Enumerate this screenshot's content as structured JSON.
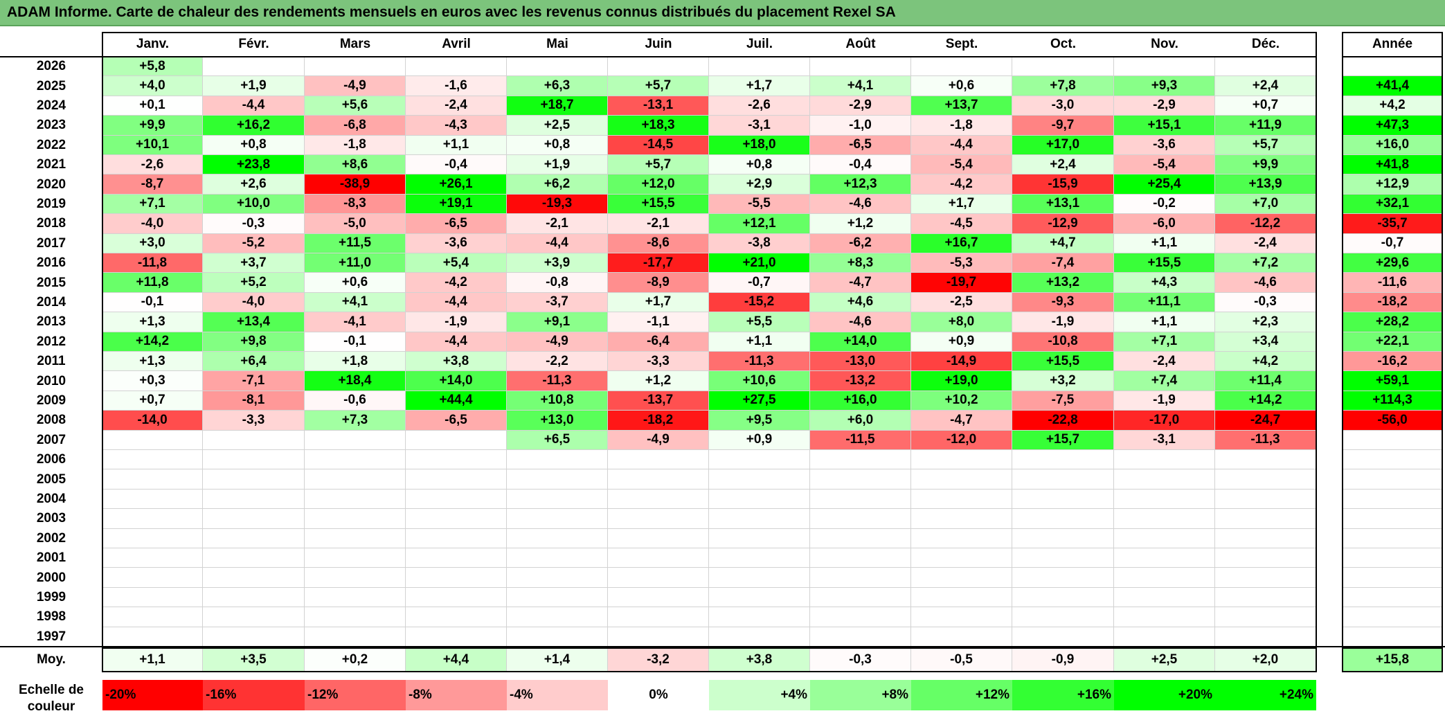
{
  "title": "ADAM Informe. Carte de chaleur des rendements mensuels en euros avec les revenus connus distribués du placement Rexel SA",
  "months": [
    "Janv.",
    "Févr.",
    "Mars",
    "Avril",
    "Mai",
    "Juin",
    "Juil.",
    "Août",
    "Sept.",
    "Oct.",
    "Nov.",
    "Déc."
  ],
  "annual_header": "Année",
  "avg_label": "Moy.",
  "scale_label": "Echelle de couleur",
  "colors": {
    "negative_max": "#ff0000",
    "neutral": "#ffffff",
    "positive_max": "#00ff00",
    "title_bar": "#7cc47c"
  },
  "chart_data": {
    "type": "heatmap",
    "title": "ADAM Informe. Carte de chaleur des rendements mensuels en euros avec les revenus connus distribués du placement Rexel SA",
    "x_categories": [
      "Janv.",
      "Févr.",
      "Mars",
      "Avril",
      "Mai",
      "Juin",
      "Juil.",
      "Août",
      "Sept.",
      "Oct.",
      "Nov.",
      "Déc."
    ],
    "years": [
      "2026",
      "2025",
      "2024",
      "2023",
      "2022",
      "2021",
      "2020",
      "2019",
      "2018",
      "2017",
      "2016",
      "2015",
      "2014",
      "2013",
      "2012",
      "2011",
      "2010",
      "2009",
      "2008",
      "2007",
      "2006",
      "2005",
      "2004",
      "2003",
      "2002",
      "2001",
      "2000",
      "1999",
      "1998",
      "1997"
    ],
    "monthly": [
      [
        "+5,8",
        "",
        "",
        "",
        "",
        "",
        "",
        "",
        "",
        "",
        "",
        ""
      ],
      [
        "+4,0",
        "+1,9",
        "-4,9",
        "-1,6",
        "+6,3",
        "+5,7",
        "+1,7",
        "+4,1",
        "+0,6",
        "+7,8",
        "+9,3",
        "+2,4"
      ],
      [
        "+0,1",
        "-4,4",
        "+5,6",
        "-2,4",
        "+18,7",
        "-13,1",
        "-2,6",
        "-2,9",
        "+13,7",
        "-3,0",
        "-2,9",
        "+0,7"
      ],
      [
        "+9,9",
        "+16,2",
        "-6,8",
        "-4,3",
        "+2,5",
        "+18,3",
        "-3,1",
        "-1,0",
        "-1,8",
        "-9,7",
        "+15,1",
        "+11,9"
      ],
      [
        "+10,1",
        "+0,8",
        "-1,8",
        "+1,1",
        "+0,8",
        "-14,5",
        "+18,0",
        "-6,5",
        "-4,4",
        "+17,0",
        "-3,6",
        "+5,7"
      ],
      [
        "-2,6",
        "+23,8",
        "+8,6",
        "-0,4",
        "+1,9",
        "+5,7",
        "+0,8",
        "-0,4",
        "-5,4",
        "+2,4",
        "-5,4",
        "+9,9"
      ],
      [
        "-8,7",
        "+2,6",
        "-38,9",
        "+26,1",
        "+6,2",
        "+12,0",
        "+2,9",
        "+12,3",
        "-4,2",
        "-15,9",
        "+25,4",
        "+13,9"
      ],
      [
        "+7,1",
        "+10,0",
        "-8,3",
        "+19,1",
        "-19,3",
        "+15,5",
        "-5,5",
        "-4,6",
        "+1,7",
        "+13,1",
        "-0,2",
        "+7,0"
      ],
      [
        "-4,0",
        "-0,3",
        "-5,0",
        "-6,5",
        "-2,1",
        "-2,1",
        "+12,1",
        "+1,2",
        "-4,5",
        "-12,9",
        "-6,0",
        "-12,2"
      ],
      [
        "+3,0",
        "-5,2",
        "+11,5",
        "-3,6",
        "-4,4",
        "-8,6",
        "-3,8",
        "-6,2",
        "+16,7",
        "+4,7",
        "+1,1",
        "-2,4"
      ],
      [
        "-11,8",
        "+3,7",
        "+11,0",
        "+5,4",
        "+3,9",
        "-17,7",
        "+21,0",
        "+8,3",
        "-5,3",
        "-7,4",
        "+15,5",
        "+7,2"
      ],
      [
        "+11,8",
        "+5,2",
        "+0,6",
        "-4,2",
        "-0,8",
        "-8,9",
        "-0,7",
        "-4,7",
        "-19,7",
        "+13,2",
        "+4,3",
        "-4,6"
      ],
      [
        "-0,1",
        "-4,0",
        "+4,1",
        "-4,4",
        "-3,7",
        "+1,7",
        "-15,2",
        "+4,6",
        "-2,5",
        "-9,3",
        "+11,1",
        "-0,3"
      ],
      [
        "+1,3",
        "+13,4",
        "-4,1",
        "-1,9",
        "+9,1",
        "-1,1",
        "+5,5",
        "-4,6",
        "+8,0",
        "-1,9",
        "+1,1",
        "+2,3"
      ],
      [
        "+14,2",
        "+9,8",
        "-0,1",
        "-4,4",
        "-4,9",
        "-6,4",
        "+1,1",
        "+14,0",
        "+0,9",
        "-10,8",
        "+7,1",
        "+3,4"
      ],
      [
        "+1,3",
        "+6,4",
        "+1,8",
        "+3,8",
        "-2,2",
        "-3,3",
        "-11,3",
        "-13,0",
        "-14,9",
        "+15,5",
        "-2,4",
        "+4,2"
      ],
      [
        "+0,3",
        "-7,1",
        "+18,4",
        "+14,0",
        "-11,3",
        "+1,2",
        "+10,6",
        "-13,2",
        "+19,0",
        "+3,2",
        "+7,4",
        "+11,4"
      ],
      [
        "+0,7",
        "-8,1",
        "-0,6",
        "+44,4",
        "+10,8",
        "-13,7",
        "+27,5",
        "+16,0",
        "+10,2",
        "-7,5",
        "-1,9",
        "+14,2"
      ],
      [
        "-14,0",
        "-3,3",
        "+7,3",
        "-6,5",
        "+13,0",
        "-18,2",
        "+9,5",
        "+6,0",
        "-4,7",
        "-22,8",
        "-17,0",
        "-24,7"
      ],
      [
        "",
        "",
        "",
        "",
        "+6,5",
        "-4,9",
        "+0,9",
        "-11,5",
        "-12,0",
        "+15,7",
        "-3,1",
        "-11,3"
      ],
      [
        "",
        "",
        "",
        "",
        "",
        "",
        "",
        "",
        "",
        "",
        "",
        ""
      ],
      [
        "",
        "",
        "",
        "",
        "",
        "",
        "",
        "",
        "",
        "",
        "",
        ""
      ],
      [
        "",
        "",
        "",
        "",
        "",
        "",
        "",
        "",
        "",
        "",
        "",
        ""
      ],
      [
        "",
        "",
        "",
        "",
        "",
        "",
        "",
        "",
        "",
        "",
        "",
        ""
      ],
      [
        "",
        "",
        "",
        "",
        "",
        "",
        "",
        "",
        "",
        "",
        "",
        ""
      ],
      [
        "",
        "",
        "",
        "",
        "",
        "",
        "",
        "",
        "",
        "",
        "",
        ""
      ],
      [
        "",
        "",
        "",
        "",
        "",
        "",
        "",
        "",
        "",
        "",
        "",
        ""
      ],
      [
        "",
        "",
        "",
        "",
        "",
        "",
        "",
        "",
        "",
        "",
        "",
        ""
      ],
      [
        "",
        "",
        "",
        "",
        "",
        "",
        "",
        "",
        "",
        "",
        "",
        ""
      ],
      [
        "",
        "",
        "",
        "",
        "",
        "",
        "",
        "",
        "",
        "",
        "",
        ""
      ]
    ],
    "annual": [
      "",
      "+41,4",
      "+4,2",
      "+47,3",
      "+16,0",
      "+41,8",
      "+12,9",
      "+32,1",
      "-35,7",
      "-0,7",
      "+29,6",
      "-11,6",
      "-18,2",
      "+28,2",
      "+22,1",
      "-16,2",
      "+59,1",
      "+114,3",
      "-56,0",
      "",
      "",
      "",
      "",
      "",
      "",
      "",
      "",
      "",
      "",
      ""
    ],
    "averages": [
      "+1,1",
      "+3,5",
      "+0,2",
      "+4,4",
      "+1,4",
      "-3,2",
      "+3,8",
      "-0,3",
      "-0,5",
      "-0,9",
      "+2,5",
      "+2,0"
    ],
    "average_annual": "+15,8",
    "color_scale": [
      "-20%",
      "-16%",
      "-12%",
      "-8%",
      "-4%",
      "0%",
      "+4%",
      "+8%",
      "+12%",
      "+16%",
      "+20%",
      "+24%"
    ]
  }
}
